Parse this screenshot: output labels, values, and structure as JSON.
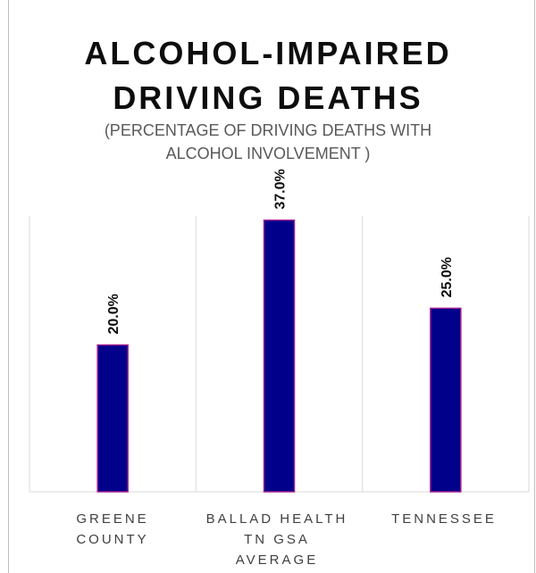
{
  "chart_data": {
    "type": "bar",
    "title_line1": "ALCOHOL-IMPAIRED",
    "title_line2": "DRIVING DEATHS",
    "subtitle_line1": "(PERCENTAGE OF DRIVING DEATHS WITH",
    "subtitle_line2": "ALCOHOL INVOLVEMENT )",
    "categories": [
      {
        "line1": "GREENE",
        "line2": "COUNTY",
        "line3": ""
      },
      {
        "line1": "BALLAD HEALTH",
        "line2": "TN GSA",
        "line3": "AVERAGE"
      },
      {
        "line1": "TENNESSEE",
        "line2": "",
        "line3": ""
      }
    ],
    "values": [
      20.0,
      37.0,
      25.0
    ],
    "data_labels": [
      "20.0%",
      "37.0%",
      "25.0%"
    ],
    "ylim": [
      0,
      40
    ],
    "colors": {
      "bar_fill": "#00008b",
      "bar_stroke": "#a0208c",
      "gridline": "#d9d9d9"
    }
  }
}
